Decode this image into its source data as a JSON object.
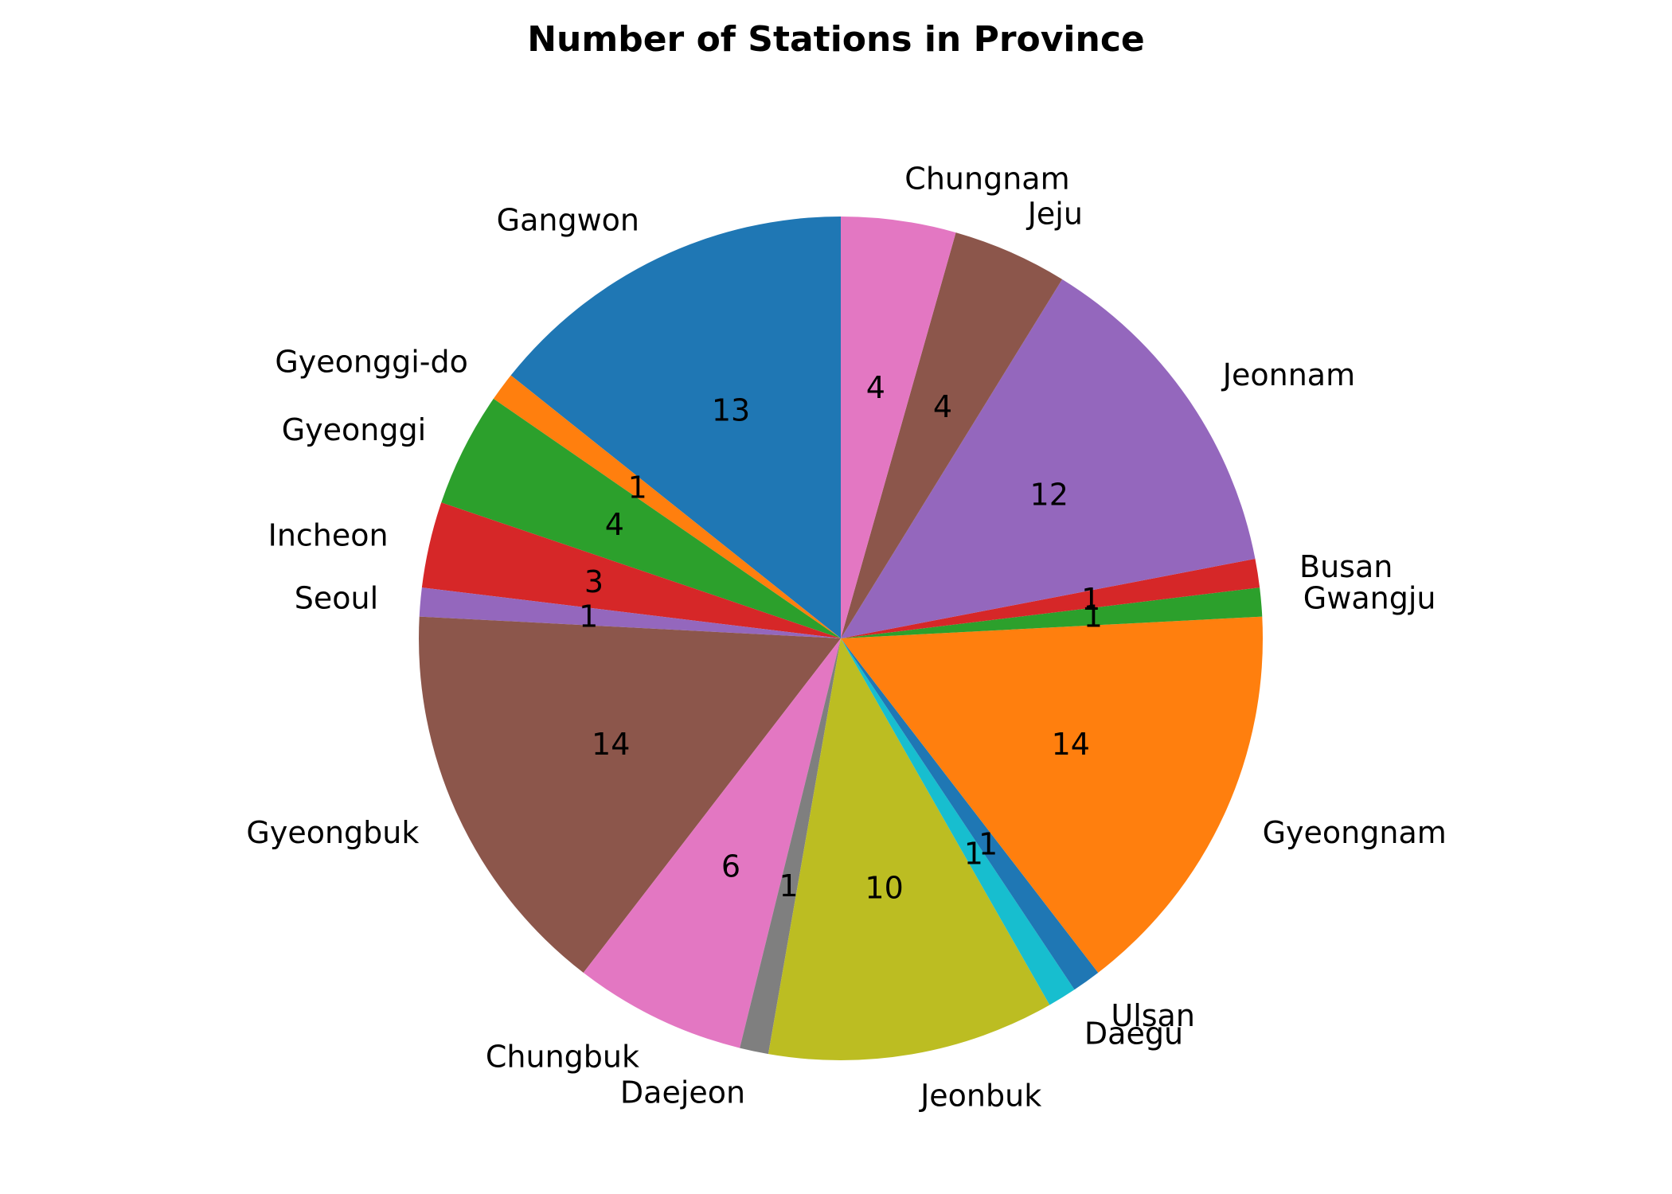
{
  "chart_data": {
    "type": "pie",
    "title": "Number of Stations in Province",
    "start_angle_deg": 90,
    "direction": "counterclockwise",
    "label_format": "value",
    "slices": [
      {
        "label": "Gangwon",
        "value": 13,
        "color": "#1f77b4"
      },
      {
        "label": "Gyeonggi-do",
        "value": 1,
        "color": "#ff7f0e"
      },
      {
        "label": "Gyeonggi",
        "value": 4,
        "color": "#2ca02c"
      },
      {
        "label": "Incheon",
        "value": 3,
        "color": "#d62728"
      },
      {
        "label": "Seoul",
        "value": 1,
        "color": "#9467bd"
      },
      {
        "label": "Gyeongbuk",
        "value": 14,
        "color": "#8c564b"
      },
      {
        "label": "Chungbuk",
        "value": 6,
        "color": "#e377c2"
      },
      {
        "label": "Daejeon",
        "value": 1,
        "color": "#7f7f7f"
      },
      {
        "label": "Jeonbuk",
        "value": 10,
        "color": "#bcbd22"
      },
      {
        "label": "Daegu",
        "value": 1,
        "color": "#17becf"
      },
      {
        "label": "Ulsan",
        "value": 1,
        "color": "#1f77b4"
      },
      {
        "label": "Gyeongnam",
        "value": 14,
        "color": "#ff7f0e"
      },
      {
        "label": "Gwangju",
        "value": 1,
        "color": "#2ca02c"
      },
      {
        "label": "Busan",
        "value": 1,
        "color": "#d62728"
      },
      {
        "label": "Jeonnam",
        "value": 12,
        "color": "#9467bd"
      },
      {
        "label": "Jeju",
        "value": 4,
        "color": "#8c564b"
      },
      {
        "label": "Chungnam",
        "value": 4,
        "color": "#e377c2"
      }
    ]
  }
}
